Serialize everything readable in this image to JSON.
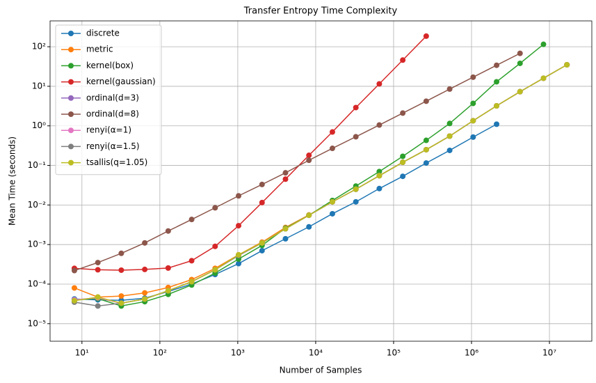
{
  "chart_data": {
    "type": "line",
    "title": "Transfer Entropy Time Complexity",
    "x_label": "Number of Samples",
    "y_label": "Mean Time (seconds)",
    "x_log": true,
    "y_log": true,
    "grid": true,
    "legend": "upper left",
    "xlim": [
      3.9,
      35000000
    ],
    "ylim": [
      3.6e-06,
      450
    ],
    "xticks": [
      {
        "value": 10,
        "label": "10¹"
      },
      {
        "value": 100,
        "label": "10²"
      },
      {
        "value": 1000,
        "label": "10³"
      },
      {
        "value": 10000,
        "label": "10⁴"
      },
      {
        "value": 100000,
        "label": "10⁵"
      },
      {
        "value": 1000000,
        "label": "10⁶"
      },
      {
        "value": 10000000,
        "label": "10⁷"
      }
    ],
    "yticks": [
      {
        "value": 1e-05,
        "label": "10⁻⁵"
      },
      {
        "value": 0.0001,
        "label": "10⁻⁴"
      },
      {
        "value": 0.001,
        "label": "10⁻³"
      },
      {
        "value": 0.01,
        "label": "10⁻²"
      },
      {
        "value": 0.1,
        "label": "10⁻¹"
      },
      {
        "value": 1,
        "label": "10⁰"
      },
      {
        "value": 10,
        "label": "10¹"
      },
      {
        "value": 100,
        "label": "10²"
      }
    ],
    "x": [
      8,
      16,
      32,
      64,
      128,
      256,
      512,
      1024,
      2048,
      4096,
      8192,
      16384,
      32768,
      65536,
      131072,
      262144,
      524288,
      1048576,
      2097152,
      4194304,
      8388608,
      16777216
    ],
    "series": [
      {
        "name": "discrete",
        "color": "#1f77b4",
        "values": [
          4.2e-05,
          4e-05,
          3.9e-05,
          4.4e-05,
          6.5e-05,
          0.0001,
          0.000175,
          0.00033,
          0.0007,
          0.0014,
          0.0028,
          0.006,
          0.012,
          0.026,
          0.053,
          0.115,
          0.24,
          0.52,
          1.1,
          null,
          null,
          null
        ]
      },
      {
        "name": "metric",
        "color": "#ff7f0e",
        "values": [
          8e-05,
          4.7e-05,
          5e-05,
          6e-05,
          8.2e-05,
          0.00013,
          0.00025,
          0.00055,
          0.00115,
          0.0027,
          0.0056,
          0.012,
          0.025,
          0.055,
          0.12,
          0.25,
          0.55,
          1.35,
          3.2,
          7.3,
          16,
          35
        ]
      },
      {
        "name": "kernel(box)",
        "color": "#2ca02c",
        "values": [
          4e-05,
          4.3e-05,
          2.8e-05,
          3.6e-05,
          5.5e-05,
          9.5e-05,
          0.00019,
          0.00043,
          0.00095,
          0.0026,
          0.0055,
          0.013,
          0.03,
          0.07,
          0.17,
          0.43,
          1.15,
          3.7,
          13,
          38,
          115,
          null
        ]
      },
      {
        "name": "kernel(gaussian)",
        "color": "#d62728",
        "values": [
          0.00025,
          0.00023,
          0.000225,
          0.000235,
          0.000255,
          0.00039,
          0.0009,
          0.003,
          0.0115,
          0.045,
          0.18,
          0.7,
          2.9,
          11.5,
          46,
          185,
          null,
          null,
          null,
          null,
          null,
          null
        ]
      },
      {
        "name": "ordinal(d=3)",
        "color": "#9467bd",
        "values": [
          4e-05,
          4.5e-05,
          3.3e-05,
          4.2e-05,
          6.8e-05,
          0.000115,
          0.00023,
          0.00053,
          0.0011,
          0.0025,
          0.0055,
          0.012,
          0.025,
          0.055,
          0.12,
          0.25,
          0.55,
          1.35,
          3.2,
          7.3,
          16,
          35
        ]
      },
      {
        "name": "ordinal(d=8)",
        "color": "#8c564b",
        "values": [
          0.00022,
          0.00035,
          0.0006,
          0.0011,
          0.0022,
          0.0043,
          0.0085,
          0.017,
          0.033,
          0.065,
          0.135,
          0.27,
          0.53,
          1.05,
          2.1,
          4.2,
          8.5,
          17,
          34,
          68,
          null,
          null
        ]
      },
      {
        "name": "renyi(α=1)",
        "color": "#e377c2",
        "values": [
          4e-05,
          4.5e-05,
          3.3e-05,
          4.2e-05,
          6.8e-05,
          0.000115,
          0.00023,
          0.00053,
          0.0011,
          0.0025,
          0.0055,
          0.012,
          0.025,
          0.055,
          0.12,
          0.25,
          0.55,
          1.35,
          3.2,
          7.3,
          16,
          35
        ]
      },
      {
        "name": "renyi(α=1.5)",
        "color": "#7f7f7f",
        "values": [
          3.5e-05,
          2.8e-05,
          3.3e-05,
          4.2e-05,
          6.8e-05,
          0.000115,
          0.00023,
          0.00053,
          0.0011,
          0.0025,
          0.0055,
          0.012,
          0.025,
          0.055,
          0.12,
          0.25,
          0.55,
          1.35,
          3.2,
          7.3,
          16,
          35
        ]
      },
      {
        "name": "tsallis(q=1.05)",
        "color": "#bcbd22",
        "values": [
          3.8e-05,
          4.7e-05,
          3.3e-05,
          4.2e-05,
          6.8e-05,
          0.000115,
          0.00023,
          0.00055,
          0.0011,
          0.0025,
          0.0055,
          0.012,
          0.025,
          0.055,
          0.12,
          0.25,
          0.55,
          1.35,
          3.2,
          7.3,
          16,
          35
        ]
      }
    ]
  }
}
